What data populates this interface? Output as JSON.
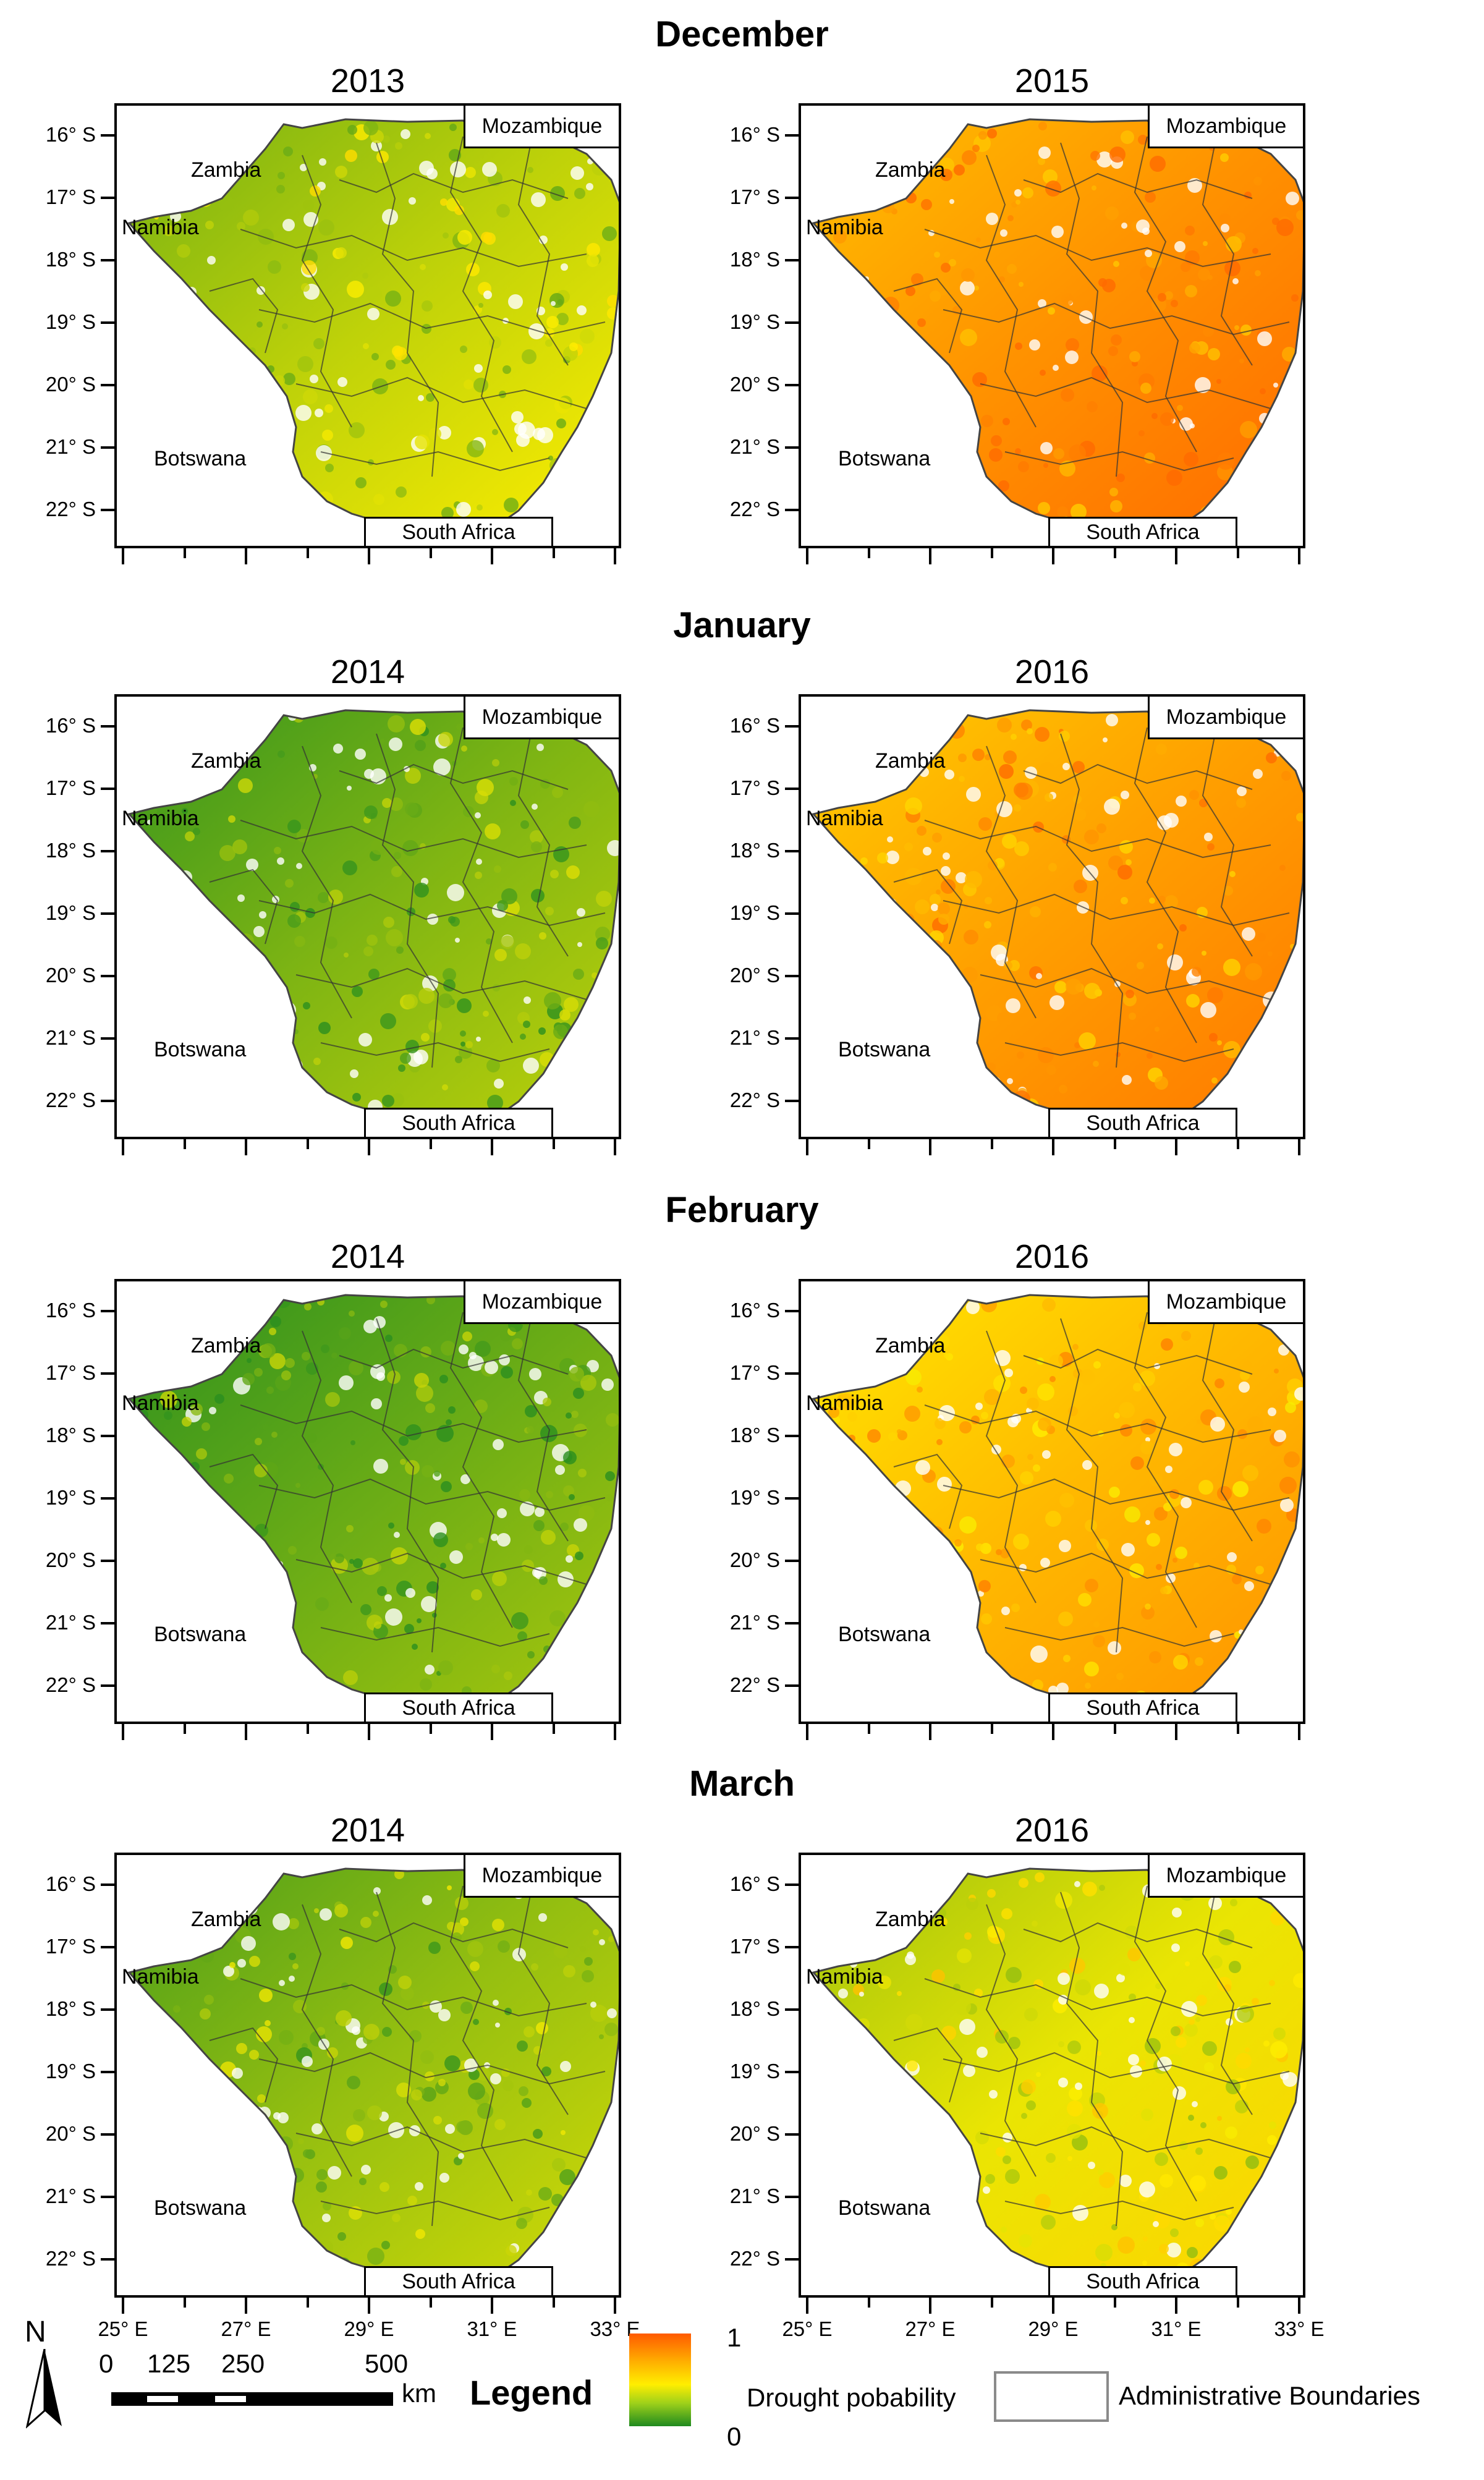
{
  "months": [
    "December",
    "January",
    "February",
    "March"
  ],
  "years": [
    [
      "2013",
      "2015"
    ],
    [
      "2014",
      "2016"
    ],
    [
      "2014",
      "2016"
    ],
    [
      "2014",
      "2016"
    ]
  ],
  "panel_severity": [
    [
      0.35,
      0.85
    ],
    [
      0.2,
      0.8
    ],
    [
      0.15,
      0.7
    ],
    [
      0.25,
      0.45
    ]
  ],
  "labels": {
    "zambia": "Zambia",
    "mozambique": "Mozambique",
    "namibia": "Namibia",
    "botswana": "Botswana",
    "south_africa": "South Africa"
  },
  "lat_ticks": [
    "16° S",
    "17° S",
    "18° S",
    "19° S",
    "20° S",
    "21° S",
    "22° S"
  ],
  "lon_ticks": [
    "25° E",
    "27° E",
    "29° E",
    "31° E",
    "33° E"
  ],
  "scale": {
    "north": "N",
    "values": [
      "0",
      "125",
      "250",
      "500"
    ],
    "unit": "km"
  },
  "legend": {
    "title": "Legend",
    "max": "1",
    "min": "0",
    "drought_label": "Drought pobability",
    "boundary_label": "Administrative Boundaries",
    "colors": {
      "high": "#ff6a00",
      "mid": "#ffee00",
      "low": "#2a8f1f"
    }
  }
}
